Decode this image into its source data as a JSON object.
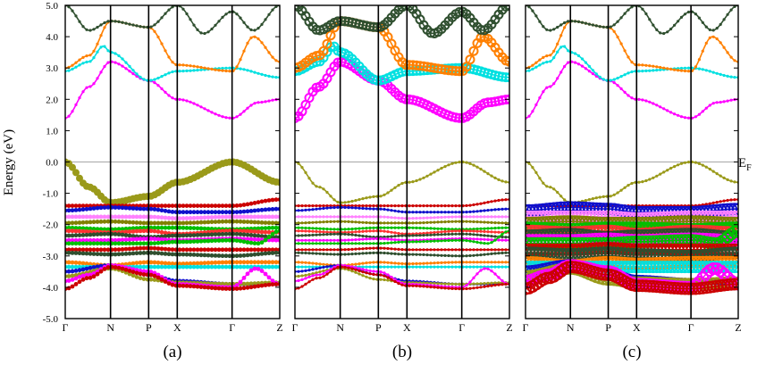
{
  "figure": {
    "ylabel": "Energy (eV)",
    "fermi_label": "E",
    "fermi_sub": "F"
  },
  "chart_data": [
    {
      "type": "line",
      "title": "(a)",
      "ylabel": "Energy (eV)",
      "ylim": [
        -5.0,
        5.0
      ],
      "yticks": [
        "5.0",
        "4.0",
        "3.0",
        "2.0",
        "1.0",
        "0.0",
        "-1.0",
        "-2.0",
        "-3.0",
        "-4.0",
        "-5.0"
      ],
      "kpoints": [
        {
          "label": "Γ",
          "x": 0.0
        },
        {
          "label": "N",
          "x": 0.19
        },
        {
          "label": "P",
          "x": 0.35
        },
        {
          "label": "X",
          "x": 0.47
        },
        {
          "label": "Γ",
          "x": 0.7
        },
        {
          "label": "Z",
          "x": 0.9
        }
      ],
      "fermi_level": 0.0,
      "projection": "orbital-weighted (circle markers)",
      "series": [
        {
          "color": "#ff00ff",
          "points": [
            [
              0,
              1.4
            ],
            [
              0.1,
              2.4
            ],
            [
              0.19,
              3.2
            ],
            [
              0.35,
              2.6
            ],
            [
              0.47,
              2.0
            ],
            [
              0.7,
              1.4
            ],
            [
              0.81,
              1.9
            ],
            [
              0.9,
              2.0
            ]
          ]
        },
        {
          "color": "#00e0e0",
          "points": [
            [
              0,
              2.9
            ],
            [
              0.1,
              3.2
            ],
            [
              0.16,
              3.7
            ],
            [
              0.19,
              3.5
            ],
            [
              0.35,
              2.6
            ],
            [
              0.47,
              2.9
            ],
            [
              0.7,
              3.0
            ],
            [
              0.9,
              2.7
            ]
          ]
        },
        {
          "color": "#ff8000",
          "points": [
            [
              0,
              3.0
            ],
            [
              0.1,
              3.4
            ],
            [
              0.19,
              4.5
            ],
            [
              0.35,
              4.3
            ],
            [
              0.47,
              3.1
            ],
            [
              0.7,
              2.9
            ],
            [
              0.79,
              4.0
            ],
            [
              0.9,
              3.2
            ]
          ]
        },
        {
          "color": "#2f4f2f",
          "points": [
            [
              0,
              5.0
            ],
            [
              0.1,
              4.2
            ],
            [
              0.19,
              4.5
            ],
            [
              0.35,
              4.3
            ],
            [
              0.47,
              5.0
            ],
            [
              0.58,
              4.1
            ],
            [
              0.7,
              4.8
            ],
            [
              0.79,
              4.2
            ],
            [
              0.9,
              5.0
            ]
          ]
        },
        {
          "color": "#9a9a1a",
          "points": [
            [
              0,
              0.0
            ],
            [
              0.1,
              -0.8
            ],
            [
              0.19,
              -1.3
            ],
            [
              0.35,
              -1.1
            ],
            [
              0.47,
              -0.65
            ],
            [
              0.7,
              0.0
            ],
            [
              0.9,
              -0.65
            ]
          ]
        },
        {
          "color": "#cc0000",
          "points": [
            [
              0,
              -1.4
            ],
            [
              0.19,
              -1.4
            ],
            [
              0.35,
              -1.4
            ],
            [
              0.47,
              -1.4
            ],
            [
              0.7,
              -1.4
            ],
            [
              0.9,
              -1.2
            ]
          ]
        },
        {
          "color": "#1010cc",
          "points": [
            [
              0,
              -1.55
            ],
            [
              0.19,
              -1.45
            ],
            [
              0.35,
              -1.5
            ],
            [
              0.47,
              -1.6
            ],
            [
              0.7,
              -1.6
            ],
            [
              0.9,
              -1.5
            ]
          ]
        },
        {
          "color": "#ff80ff",
          "points": [
            [
              0,
              -1.75
            ],
            [
              0.19,
              -1.75
            ],
            [
              0.35,
              -1.75
            ],
            [
              0.47,
              -1.8
            ],
            [
              0.7,
              -1.75
            ],
            [
              0.9,
              -1.75
            ]
          ]
        },
        {
          "color": "#808000",
          "points": [
            [
              0,
              -1.95
            ],
            [
              0.19,
              -1.9
            ],
            [
              0.35,
              -1.95
            ],
            [
              0.47,
              -1.95
            ],
            [
              0.7,
              -1.9
            ],
            [
              0.9,
              -1.95
            ]
          ]
        },
        {
          "color": "#00c000",
          "points": [
            [
              0,
              -2.1
            ],
            [
              0.19,
              -2.15
            ],
            [
              0.35,
              -2.1
            ],
            [
              0.47,
              -2.1
            ],
            [
              0.7,
              -2.15
            ],
            [
              0.9,
              -2.1
            ]
          ]
        },
        {
          "color": "#ff3030",
          "points": [
            [
              0,
              -2.2
            ],
            [
              0.19,
              -2.25
            ],
            [
              0.35,
              -2.2
            ],
            [
              0.47,
              -2.3
            ],
            [
              0.7,
              -2.2
            ],
            [
              0.9,
              -2.25
            ]
          ]
        },
        {
          "color": "#2f4f2f",
          "points": [
            [
              0,
              -2.35
            ],
            [
              0.19,
              -2.3
            ],
            [
              0.35,
              -2.4
            ],
            [
              0.47,
              -2.35
            ],
            [
              0.7,
              -2.3
            ],
            [
              0.9,
              -2.4
            ]
          ]
        },
        {
          "color": "#ff00ff",
          "points": [
            [
              0,
              -2.5
            ],
            [
              0.19,
              -2.5
            ],
            [
              0.35,
              -2.45
            ],
            [
              0.47,
              -2.5
            ],
            [
              0.7,
              -2.45
            ],
            [
              0.9,
              -2.5
            ]
          ]
        },
        {
          "color": "#00c000",
          "points": [
            [
              0,
              -2.6
            ],
            [
              0.19,
              -2.6
            ],
            [
              0.35,
              -2.6
            ],
            [
              0.47,
              -2.55
            ],
            [
              0.7,
              -2.5
            ],
            [
              0.81,
              -2.6
            ],
            [
              0.9,
              -2.2
            ]
          ]
        },
        {
          "color": "#cc0000",
          "points": [
            [
              0,
              -2.8
            ],
            [
              0.19,
              -2.8
            ],
            [
              0.35,
              -2.75
            ],
            [
              0.47,
              -2.8
            ],
            [
              0.7,
              -2.8
            ],
            [
              0.9,
              -2.8
            ]
          ]
        },
        {
          "color": "#2f4f2f",
          "points": [
            [
              0,
              -2.9
            ],
            [
              0.19,
              -2.95
            ],
            [
              0.35,
              -2.9
            ],
            [
              0.47,
              -2.95
            ],
            [
              0.7,
              -3.0
            ],
            [
              0.9,
              -2.9
            ]
          ]
        },
        {
          "color": "#ff8000",
          "points": [
            [
              0,
              -3.2
            ],
            [
              0.19,
              -3.3
            ],
            [
              0.35,
              -3.2
            ],
            [
              0.47,
              -3.25
            ],
            [
              0.7,
              -3.2
            ],
            [
              0.9,
              -3.2
            ]
          ]
        },
        {
          "color": "#00e0e0",
          "points": [
            [
              0,
              -3.35
            ],
            [
              0.9,
              -3.35
            ]
          ]
        },
        {
          "color": "#1010cc",
          "points": [
            [
              0,
              -3.5
            ],
            [
              0.19,
              -3.3
            ],
            [
              0.35,
              -3.6
            ],
            [
              0.47,
              -3.8
            ],
            [
              0.7,
              -3.9
            ],
            [
              0.9,
              -3.9
            ]
          ]
        },
        {
          "color": "#9a9a1a",
          "points": [
            [
              0,
              -3.65
            ],
            [
              0.19,
              -3.4
            ],
            [
              0.35,
              -3.75
            ],
            [
              0.47,
              -3.85
            ],
            [
              0.7,
              -3.9
            ],
            [
              0.9,
              -3.85
            ]
          ]
        },
        {
          "color": "#ff00ff",
          "points": [
            [
              0,
              -3.8
            ],
            [
              0.1,
              -3.6
            ],
            [
              0.19,
              -3.3
            ],
            [
              0.35,
              -3.5
            ],
            [
              0.47,
              -3.9
            ],
            [
              0.7,
              -4.0
            ],
            [
              0.8,
              -3.4
            ],
            [
              0.9,
              -3.9
            ]
          ]
        },
        {
          "color": "#cc0000",
          "points": [
            [
              0,
              -4.05
            ],
            [
              0.1,
              -3.7
            ],
            [
              0.19,
              -3.35
            ],
            [
              0.35,
              -3.6
            ],
            [
              0.47,
              -3.95
            ],
            [
              0.7,
              -4.05
            ],
            [
              0.9,
              -3.9
            ]
          ]
        }
      ]
    },
    {
      "type": "line",
      "title": "(b)",
      "ylim": [
        -5.0,
        5.0
      ],
      "kpoints": [
        {
          "label": "Γ",
          "x": 0.0
        },
        {
          "label": "N",
          "x": 0.19
        },
        {
          "label": "P",
          "x": 0.35
        },
        {
          "label": "X",
          "x": 0.47
        },
        {
          "label": "Γ",
          "x": 0.7
        },
        {
          "label": "Z",
          "x": 0.9
        }
      ],
      "fermi_level": 0.0,
      "projection": "orbital-weighted (circle markers), strong weight on conduction bands"
    },
    {
      "type": "line",
      "title": "(c)",
      "ylim": [
        -5.0,
        5.0
      ],
      "kpoints": [
        {
          "label": "Γ",
          "x": 0.0
        },
        {
          "label": "N",
          "x": 0.19
        },
        {
          "label": "P",
          "x": 0.35
        },
        {
          "label": "X",
          "x": 0.47
        },
        {
          "label": "Γ",
          "x": 0.7
        },
        {
          "label": "Z",
          "x": 0.9
        }
      ],
      "fermi_level": 0.0,
      "projection": "orbital-weighted (circle markers), strong weight on valence bands -1.5 to -4 eV"
    }
  ]
}
